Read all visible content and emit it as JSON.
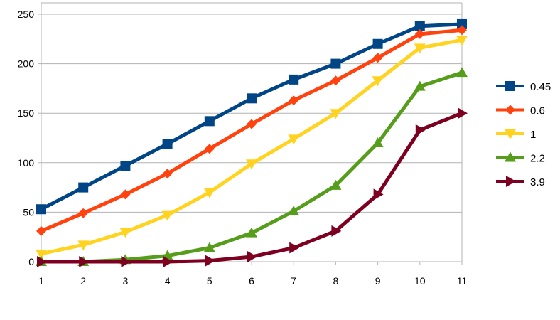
{
  "chart_data": {
    "type": "line",
    "title": "",
    "xlabel": "",
    "ylabel": "",
    "categories": [
      "1",
      "2",
      "3",
      "4",
      "5",
      "6",
      "7",
      "8",
      "9",
      "10",
      "11"
    ],
    "ylim": [
      0,
      250
    ],
    "yticks": [
      "0",
      "50",
      "100",
      "150",
      "200",
      "250"
    ],
    "grid": "horizontal",
    "legend_position": "right",
    "series": [
      {
        "name": "0.45",
        "color": "#004586",
        "marker": "square",
        "values": [
          53,
          75,
          97,
          119,
          142,
          165,
          184,
          200,
          220,
          238,
          240
        ]
      },
      {
        "name": "0.6",
        "color": "#ff420e",
        "marker": "diamond",
        "values": [
          31,
          49,
          68,
          89,
          114,
          139,
          163,
          183,
          206,
          230,
          234
        ]
      },
      {
        "name": "1",
        "color": "#ffd320",
        "marker": "triangle-down",
        "values": [
          8,
          17,
          30,
          47,
          70,
          99,
          124,
          150,
          183,
          216,
          224
        ]
      },
      {
        "name": "2.2",
        "color": "#579d1c",
        "marker": "triangle-up",
        "values": [
          0,
          0,
          2,
          6,
          14,
          29,
          51,
          77,
          120,
          177,
          191
        ]
      },
      {
        "name": "3.9",
        "color": "#7e0021",
        "marker": "triangle-right",
        "values": [
          0,
          0,
          0,
          0,
          1,
          5,
          14,
          31,
          68,
          133,
          150
        ]
      }
    ]
  }
}
